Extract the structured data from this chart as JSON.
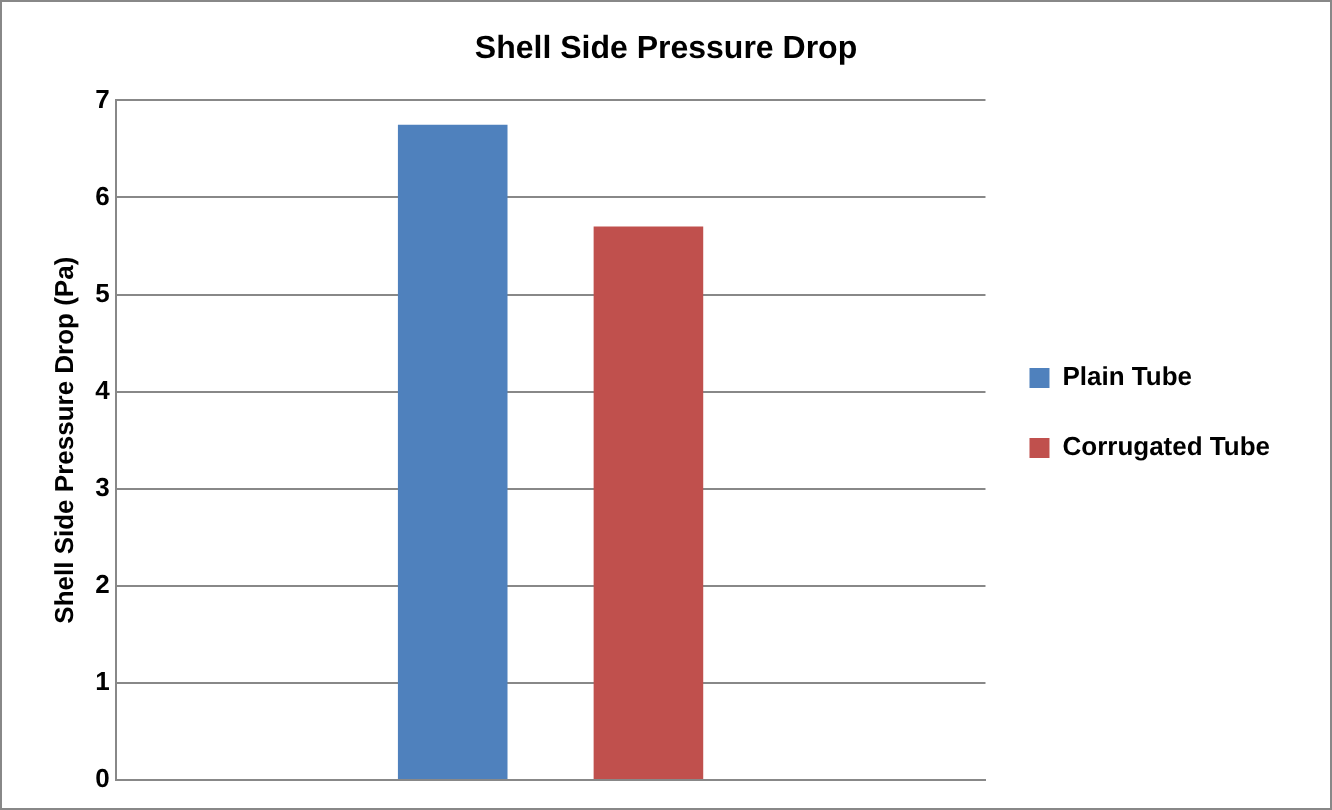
{
  "chart_data": {
    "type": "bar",
    "title": "Shell Side Pressure Drop",
    "ylabel": "Shell Side Pressure Drop (Pa)",
    "categories": [
      null
    ],
    "series": [
      {
        "name": "Plain Tube",
        "color": "#4f81bd",
        "values": [
          6.75
        ]
      },
      {
        "name": "Corrugated Tube",
        "color": "#c0504d",
        "values": [
          5.7
        ]
      }
    ],
    "ylim": [
      0,
      7
    ],
    "yticks": [
      0,
      1,
      2,
      3,
      4,
      5,
      6,
      7
    ],
    "grid": "y",
    "legend": "right",
    "tick_labels": "y"
  }
}
